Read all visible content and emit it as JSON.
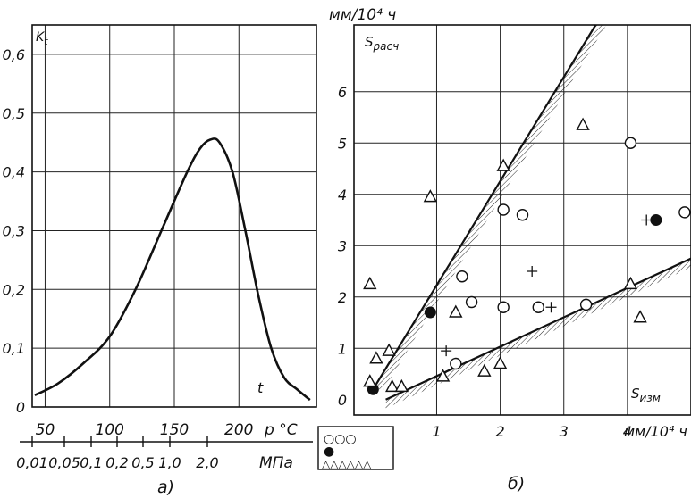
{
  "chart_data": [
    {
      "type": "line",
      "panel_label": "а)",
      "y_label": "K",
      "y_label_sub": "t",
      "curve_label": "t",
      "y_ticks": [
        "0",
        "0,1",
        "0,2",
        "0,3",
        "0,4",
        "0,5",
        "0,6"
      ],
      "ylim": [
        0,
        0.65
      ],
      "temp_axis": {
        "ticks": [
          "50",
          "100",
          "150",
          "200"
        ],
        "unit": "p °C"
      },
      "pressure_axis": {
        "ticks": [
          "0,01",
          "0,05",
          "0,1",
          "0,2",
          "0,5",
          "1,0",
          "2,0"
        ],
        "unit": "МПа"
      },
      "xlim": [
        40,
        260
      ],
      "series": [
        {
          "x": [
            42,
            60,
            80,
            100,
            120,
            140,
            160,
            170,
            178,
            185,
            195,
            205,
            215,
            225,
            235,
            245,
            255
          ],
          "y": [
            0.02,
            0.04,
            0.075,
            0.12,
            0.2,
            0.3,
            0.4,
            0.44,
            0.455,
            0.45,
            0.4,
            0.3,
            0.19,
            0.1,
            0.05,
            0.03,
            0.012
          ]
        }
      ]
    },
    {
      "type": "scatter",
      "panel_label": "б)",
      "top_unit": "мм/10⁴ ч",
      "y_label": "S",
      "y_label_sub": "расч",
      "x_label": "S",
      "x_label_sub": "изм",
      "x_ticks": [
        "0",
        "1",
        "2",
        "3",
        "4"
      ],
      "x_unit": "мм/10⁴ ч",
      "y_ticks": [
        "0",
        "1",
        "2",
        "3",
        "4",
        "5",
        "6"
      ],
      "xlim": [
        -0.3,
        5.0
      ],
      "ylim": [
        -0.3,
        7.3
      ],
      "upper_bound": {
        "x": [
          0,
          3.5
        ],
        "y": [
          0.2,
          7.3
        ]
      },
      "lower_bound": {
        "x": [
          0.2,
          5.0
        ],
        "y": [
          0,
          2.75
        ]
      },
      "series": [
        {
          "marker": "circle",
          "x": [
            1.3,
            1.4,
            1.55,
            2.05,
            2.05,
            2.35,
            2.6,
            3.35,
            4.05,
            4.9
          ],
          "y": [
            0.7,
            2.4,
            1.9,
            1.8,
            3.7,
            3.6,
            1.8,
            1.85,
            5.0,
            3.65
          ]
        },
        {
          "marker": "filled-circle",
          "x": [
            0.0,
            0.9,
            4.45
          ],
          "y": [
            0.2,
            1.7,
            3.5
          ]
        },
        {
          "marker": "triangle",
          "x": [
            -0.05,
            -0.05,
            0.05,
            0.25,
            0.3,
            0.45,
            0.9,
            1.1,
            1.3,
            1.75,
            2.0,
            2.05,
            3.3,
            4.05,
            4.2
          ],
          "y": [
            0.35,
            2.25,
            0.8,
            0.95,
            0.25,
            0.25,
            3.95,
            0.45,
            1.7,
            0.55,
            0.7,
            4.55,
            5.35,
            2.25,
            1.6
          ]
        },
        {
          "marker": "plus",
          "x": [
            1.15,
            2.5,
            2.8,
            4.3
          ],
          "y": [
            0.95,
            2.5,
            1.8,
            3.5
          ]
        }
      ],
      "legend": [
        "○○○",
        "●",
        "△△△△△△"
      ]
    }
  ]
}
